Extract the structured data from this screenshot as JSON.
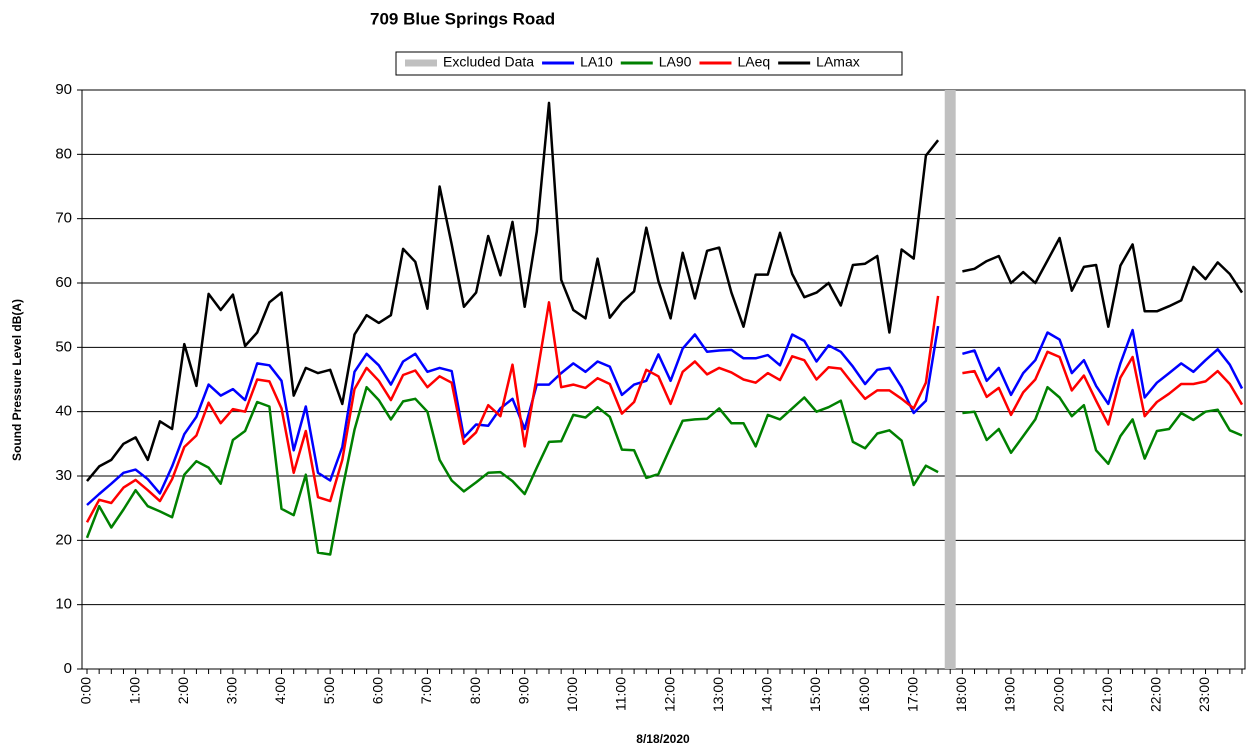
{
  "chart_data": {
    "type": "line",
    "title": "709 Blue Springs Road",
    "x_label": "8/18/2020",
    "y_label": "Sound Pressure Level dB(A)",
    "categories": [
      "0:00",
      null,
      null,
      null,
      "1:00",
      null,
      null,
      null,
      "2:00",
      null,
      null,
      null,
      "3:00",
      null,
      null,
      null,
      "4:00",
      null,
      null,
      null,
      "5:00",
      null,
      null,
      null,
      "6:00",
      null,
      null,
      null,
      "7:00",
      null,
      null,
      null,
      "8:00",
      null,
      null,
      null,
      "9:00",
      null,
      null,
      null,
      "10:00",
      null,
      null,
      null,
      "11:00",
      null,
      null,
      null,
      "12:00",
      null,
      null,
      null,
      "13:00",
      null,
      null,
      null,
      "14:00",
      null,
      null,
      null,
      "15:00",
      null,
      null,
      null,
      "16:00",
      null,
      null,
      null,
      "17:00",
      null,
      null,
      null,
      "18:00",
      null,
      null,
      null,
      "19:00",
      null,
      null,
      null,
      "20:00",
      null,
      null,
      null,
      "21:00",
      null,
      null,
      null,
      "22:00",
      null,
      null,
      null,
      "23:00",
      null,
      null,
      null
    ],
    "ylim": [
      0,
      90
    ],
    "yticks": [
      0,
      10,
      20,
      30,
      40,
      50,
      60,
      70,
      80,
      90
    ],
    "grid": true,
    "legend_position": "top",
    "series": [
      {
        "name": "Excluded Data",
        "type": "bar",
        "color": "#c0c0c0",
        "values": [
          null,
          null,
          null,
          null,
          null,
          null,
          null,
          null,
          null,
          null,
          null,
          null,
          null,
          null,
          null,
          null,
          null,
          null,
          null,
          null,
          null,
          null,
          null,
          null,
          null,
          null,
          null,
          null,
          null,
          null,
          null,
          null,
          null,
          null,
          null,
          null,
          null,
          null,
          null,
          null,
          null,
          null,
          null,
          null,
          null,
          null,
          null,
          null,
          null,
          null,
          null,
          null,
          null,
          null,
          null,
          null,
          null,
          null,
          null,
          null,
          null,
          null,
          null,
          null,
          null,
          null,
          null,
          null,
          null,
          null,
          null,
          90,
          null,
          null,
          null,
          null,
          null,
          null,
          null,
          null,
          null,
          null,
          null,
          null,
          null,
          null,
          null,
          null,
          null,
          null,
          null,
          null,
          null,
          null,
          null,
          null
        ]
      },
      {
        "name": "LA10",
        "type": "line",
        "color": "#0000ff",
        "values": [
          25.5,
          27.2,
          28.8,
          30.5,
          31,
          29.5,
          27.3,
          31.5,
          36.5,
          39.2,
          44.2,
          42.5,
          43.5,
          41.8,
          47.5,
          47.2,
          44.8,
          34,
          40.8,
          30.5,
          29.3,
          34.5,
          46.2,
          49,
          47.2,
          44.2,
          47.8,
          49,
          46.2,
          46.8,
          46.3,
          36,
          38,
          37.8,
          40.5,
          42,
          37.3,
          44.2,
          44.2,
          46,
          47.5,
          46.2,
          47.8,
          47,
          42.6,
          44.2,
          44.8,
          48.9,
          44.8,
          49.8,
          52,
          49.3,
          49.5,
          49.6,
          48.3,
          48.3,
          48.8,
          47.2,
          52,
          51,
          47.8,
          50.3,
          49.3,
          47,
          44.3,
          46.5,
          46.8,
          43.8,
          39.8,
          41.7,
          53.3,
          null,
          49,
          49.5,
          44.8,
          46.8,
          42.6,
          46,
          48,
          52.3,
          51.2,
          46,
          48,
          44,
          41.2,
          47.5,
          52.7,
          42.2,
          44.5,
          46,
          47.5,
          46.2,
          48,
          49.7,
          47.3,
          43.6
        ]
      },
      {
        "name": "LA90",
        "type": "line",
        "color": "#008000",
        "values": [
          20.4,
          25.3,
          22,
          24.8,
          27.8,
          25.3,
          24.5,
          23.6,
          30.2,
          32.3,
          31.3,
          28.8,
          35.6,
          37,
          41.5,
          40.8,
          24.9,
          23.9,
          30.2,
          18.1,
          17.8,
          27.9,
          37.2,
          43.8,
          41.8,
          38.8,
          41.6,
          42,
          40,
          32.5,
          29.3,
          27.6,
          29,
          30.5,
          30.6,
          29.2,
          27.2,
          31.3,
          35.3,
          35.4,
          39.5,
          39.1,
          40.7,
          39.2,
          34.1,
          34,
          29.7,
          30.3,
          34.5,
          38.6,
          38.8,
          38.9,
          40.5,
          38.2,
          38.2,
          34.6,
          39.5,
          38.8,
          40.5,
          42.2,
          40,
          40.7,
          41.7,
          35.3,
          34.3,
          36.6,
          37.1,
          35.5,
          28.6,
          31.6,
          30.6,
          null,
          39.8,
          40,
          35.6,
          37.3,
          33.6,
          36.2,
          38.8,
          43.8,
          42.2,
          39.3,
          41,
          34,
          31.9,
          36.2,
          38.8,
          32.7,
          37,
          37.3,
          39.8,
          38.7,
          40,
          40.3,
          37.1,
          36.3
        ]
      },
      {
        "name": "LAeq",
        "type": "line",
        "color": "#ff0000",
        "values": [
          22.8,
          26.3,
          25.8,
          28.2,
          29.4,
          27.8,
          26.1,
          29.5,
          34.5,
          36.3,
          41.4,
          38.2,
          40.4,
          40,
          45,
          44.7,
          40.5,
          30.5,
          37,
          26.7,
          26.1,
          32.5,
          43.5,
          46.8,
          44.8,
          41.8,
          45.7,
          46.4,
          43.8,
          45.5,
          44.5,
          35,
          36.8,
          41,
          39.3,
          47.3,
          34.6,
          45.5,
          57,
          43.8,
          44.2,
          43.7,
          45.2,
          44.3,
          39.7,
          41.5,
          46.5,
          45.5,
          41.2,
          46.2,
          47.8,
          45.8,
          46.8,
          46.1,
          45,
          44.5,
          46,
          44.9,
          48.6,
          48,
          45,
          46.9,
          46.7,
          44.3,
          42,
          43.3,
          43.3,
          42,
          40.5,
          44.5,
          58,
          null,
          46,
          46.3,
          42.3,
          43.7,
          39.5,
          43,
          45,
          49.3,
          48.5,
          43.3,
          45.6,
          41.7,
          38,
          45.3,
          48.5,
          39.3,
          41.5,
          42.8,
          44.3,
          44.3,
          44.7,
          46.3,
          44.3,
          41.1
        ]
      },
      {
        "name": "LAmax",
        "type": "line",
        "color": "#000000",
        "values": [
          29.2,
          31.5,
          32.5,
          35,
          36,
          32.5,
          38.5,
          37.3,
          50.5,
          44,
          58.3,
          55.8,
          58.2,
          50.2,
          52.3,
          57,
          58.5,
          42.5,
          46.8,
          46,
          46.5,
          41.2,
          52,
          55,
          53.8,
          55,
          65.3,
          63.3,
          56,
          75,
          66,
          56.3,
          58.5,
          67.3,
          61.2,
          69.5,
          56.3,
          68,
          88,
          60.5,
          55.8,
          54.5,
          63.8,
          54.6,
          57,
          58.7,
          68.6,
          60.3,
          54.5,
          64.7,
          57.6,
          65,
          65.5,
          58.5,
          53.2,
          61.3,
          61.3,
          67.8,
          61.4,
          57.8,
          58.5,
          60,
          56.5,
          62.8,
          63,
          64.2,
          52.3,
          65.2,
          63.8,
          79.8,
          82.2,
          null,
          61.8,
          62.2,
          63.4,
          64.2,
          60,
          61.7,
          60,
          63.5,
          67,
          58.8,
          62.5,
          62.8,
          53.2,
          62.7,
          66,
          55.6,
          55.6,
          56.4,
          57.3,
          62.5,
          60.6,
          63.2,
          61.4,
          58.5
        ]
      }
    ]
  }
}
